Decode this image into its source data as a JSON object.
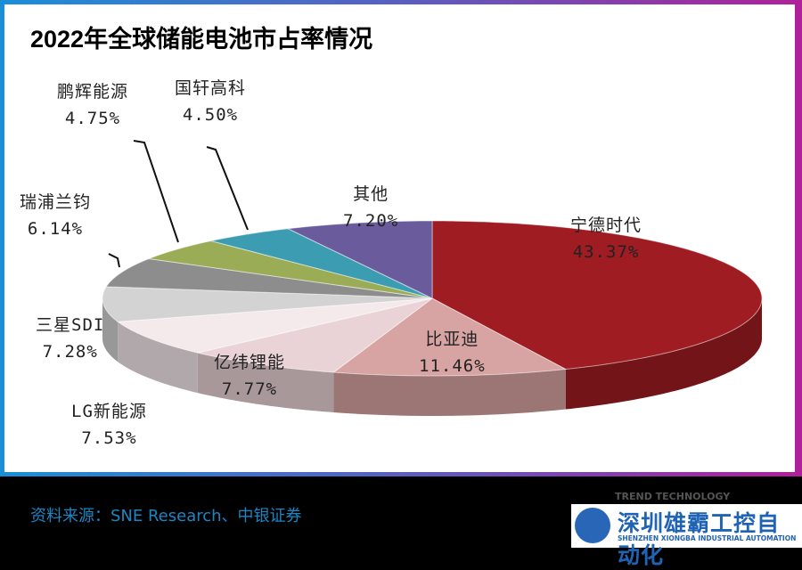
{
  "title": "2022年全球储能电池市占率情况",
  "source": "资料来源：SNE Research、中银证券",
  "logo": {
    "cn": "深圳雄霸工控自动化",
    "en": "SHENZHEN XIONGBA INDUSTRIAL AUTOMATION",
    "watermark": "TREND TECHNOLOGY"
  },
  "chart_data": {
    "type": "pie",
    "title": "2022年全球储能电池市占率情况",
    "slices": [
      {
        "label": "宁德时代",
        "value": 43.37,
        "text": "43.37%",
        "color": "#9e1c22"
      },
      {
        "label": "比亚迪",
        "value": 11.46,
        "text": "11.46%",
        "color": "#d8a3a3"
      },
      {
        "label": "亿纬锂能",
        "value": 7.77,
        "text": "7.77%",
        "color": "#ead3d6"
      },
      {
        "label": "LG新能源",
        "value": 7.53,
        "text": "7.53%",
        "color": "#f4eaec"
      },
      {
        "label": "三星SDI",
        "value": 7.28,
        "text": "7.28%",
        "color": "#d3d3d3"
      },
      {
        "label": "瑞浦兰钧",
        "value": 6.14,
        "text": "6.14%",
        "color": "#8d8d8d"
      },
      {
        "label": "鹏辉能源",
        "value": 4.75,
        "text": "4.75%",
        "color": "#9aac55"
      },
      {
        "label": "国轩高科",
        "value": 4.5,
        "text": "4.50%",
        "color": "#3c9db2"
      },
      {
        "label": "其他",
        "value": 7.2,
        "text": "7.20%",
        "color": "#6a5b9c"
      }
    ],
    "style": "3d-pie",
    "start": "top, clockwise"
  }
}
